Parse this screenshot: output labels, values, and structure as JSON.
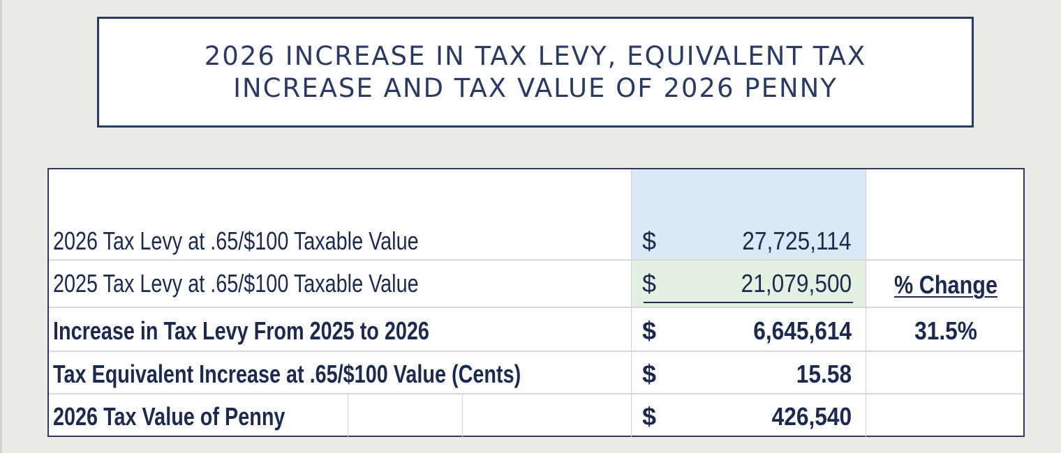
{
  "title": {
    "line1": "2026 INCREASE IN TAX LEVY, EQUIVALENT TAX",
    "line2": "INCREASE AND TAX VALUE OF 2026 PENNY"
  },
  "table": {
    "rows": [
      {
        "label": "2026 Tax Levy at .65/$100 Taxable Value",
        "currency": "$",
        "amount": "27,725,114"
      },
      {
        "label": "2025 Tax Levy at .65/$100 Taxable Value",
        "currency": "$",
        "amount": "21,079,500"
      },
      {
        "label": "Increase in Tax Levy From 2025 to 2026",
        "currency": "$",
        "amount": "6,645,614"
      },
      {
        "label": "Tax Equivalent Increase at .65/$100 Value (Cents)",
        "currency": "$",
        "amount": "15.58"
      },
      {
        "label": "2026 Tax Value of Penny",
        "currency": "$",
        "amount": "426,540"
      }
    ],
    "pct_change_header": "% Change",
    "pct_change_value": "31.5%"
  },
  "colors": {
    "text": "#1b2a4e",
    "border": "#2a3a62",
    "highlight_blue": "#dbe8f5",
    "highlight_green": "#e4f0e2",
    "background": "#ecece6"
  }
}
